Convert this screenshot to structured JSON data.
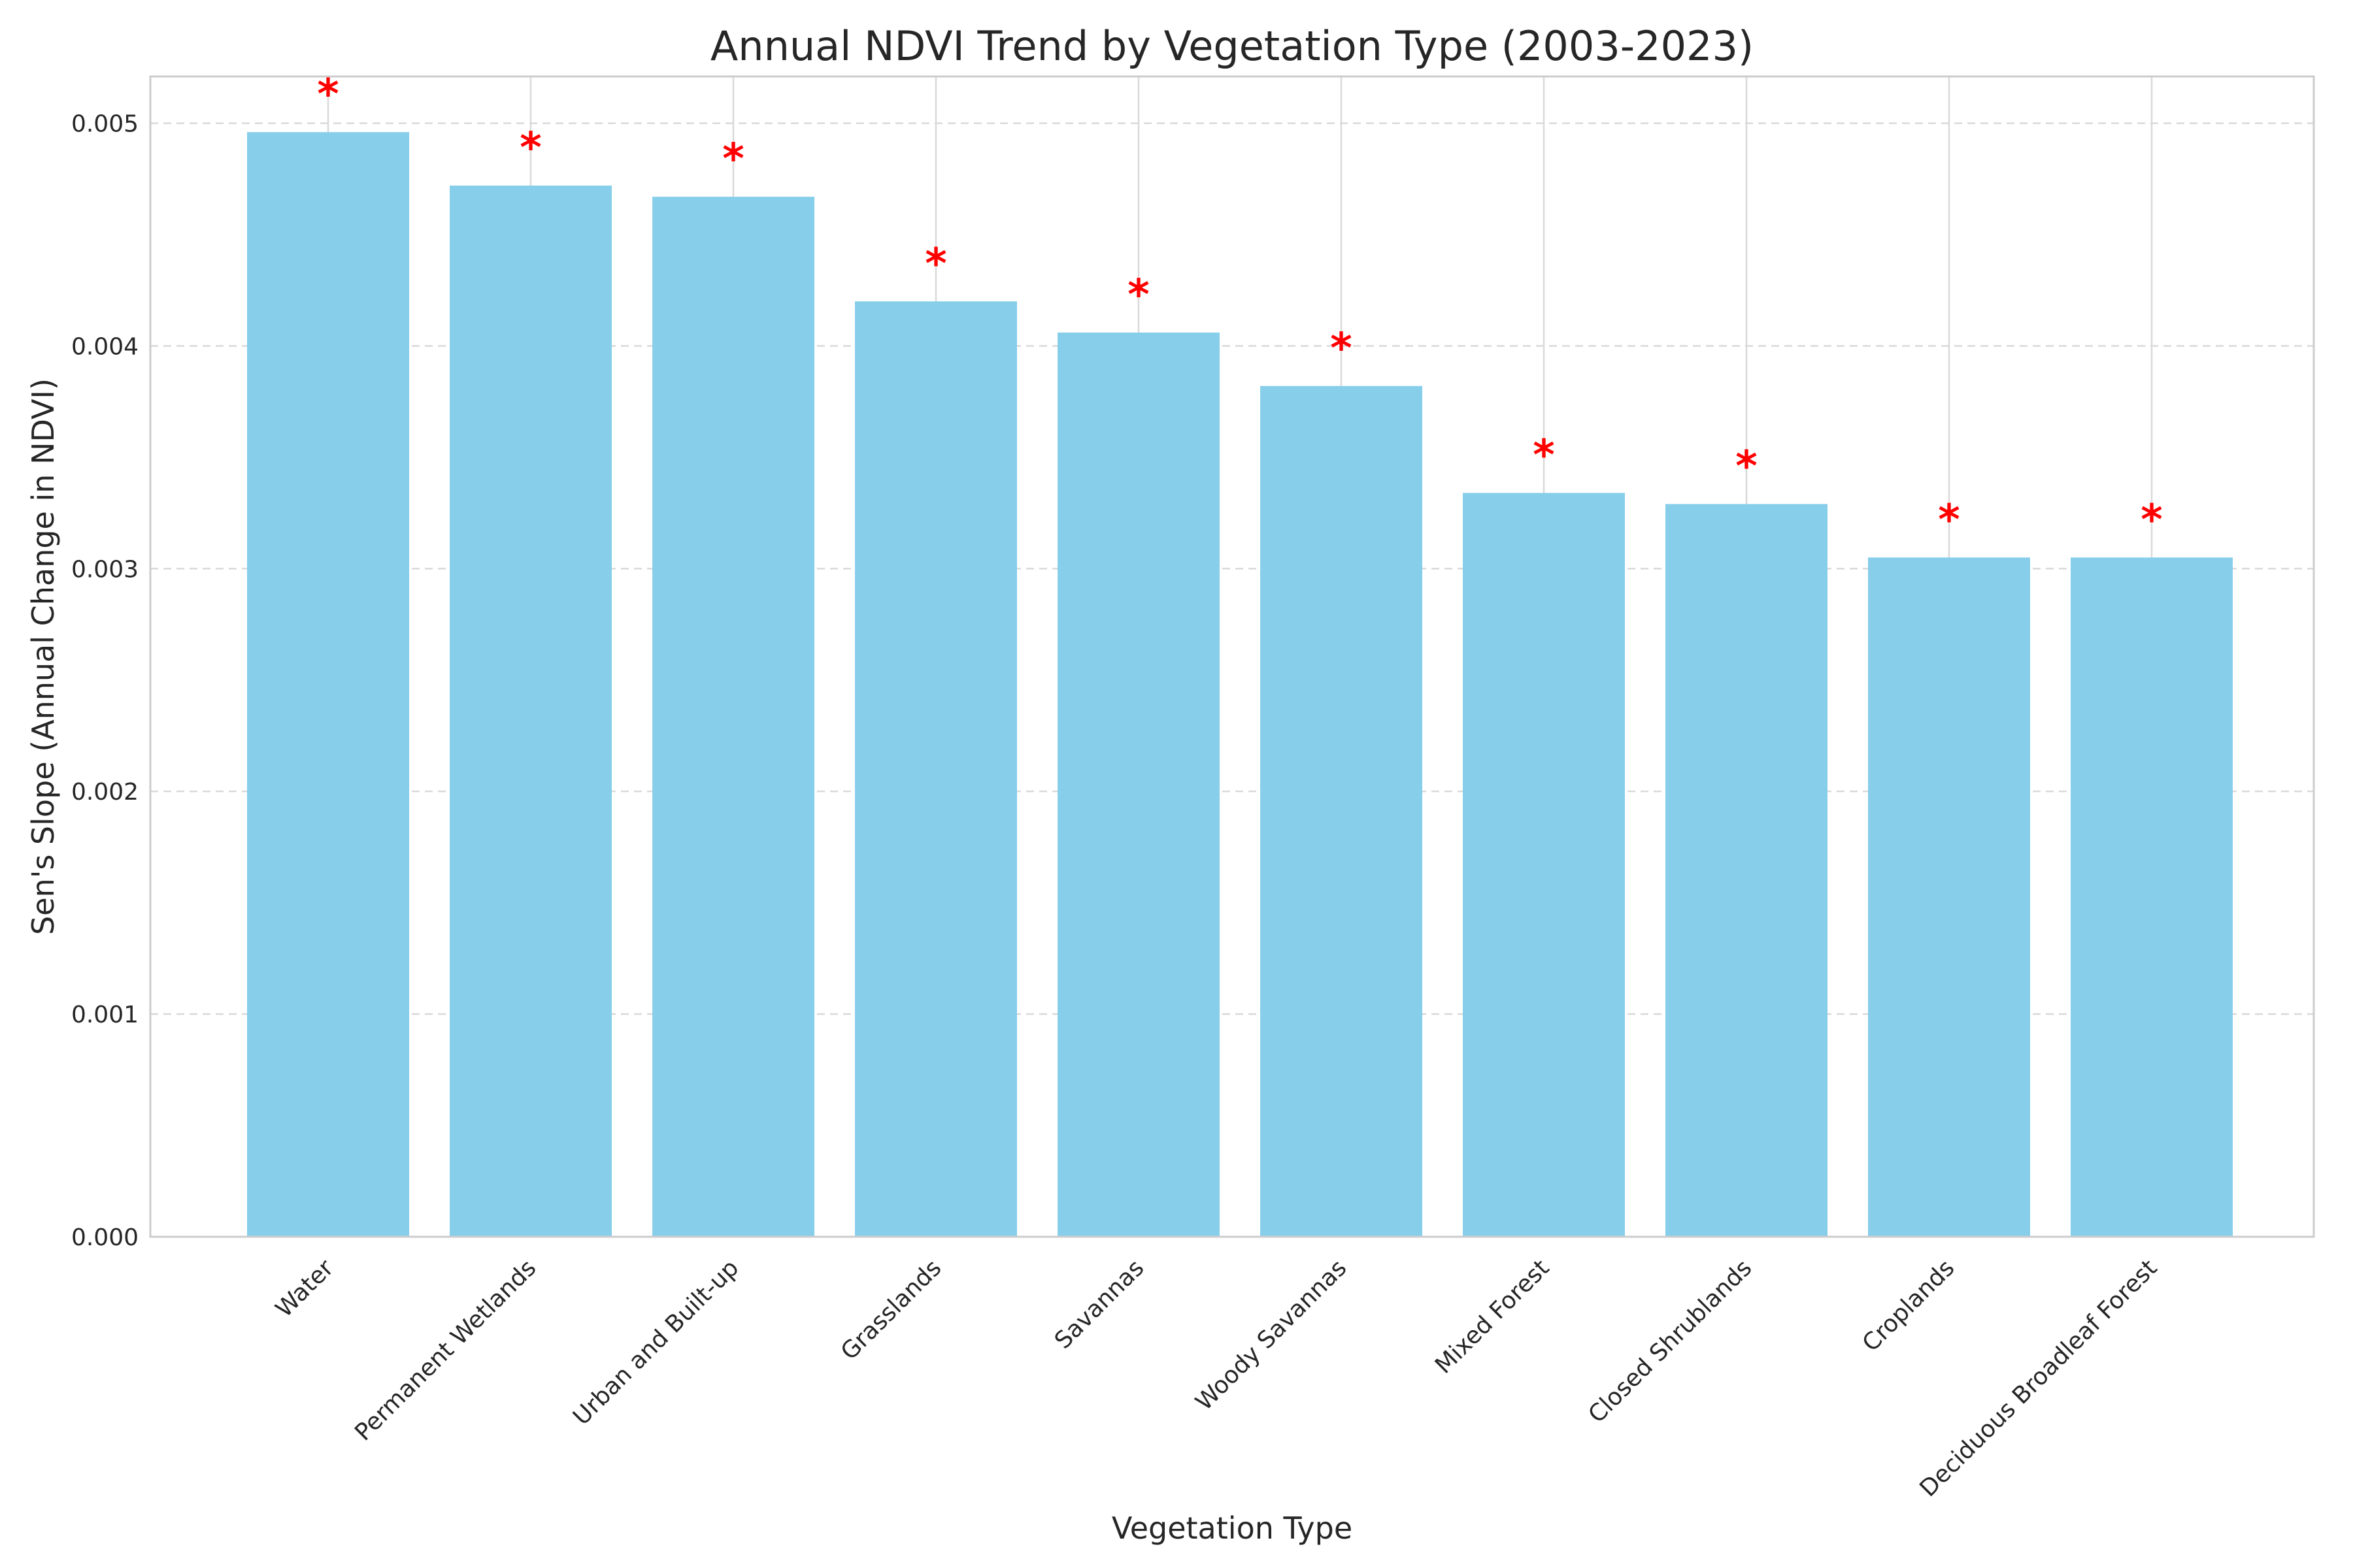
{
  "chart_data": {
    "type": "bar",
    "title": "Annual NDVI Trend by Vegetation Type (2003-2023)",
    "xlabel": "Vegetation Type",
    "ylabel": "Sen's Slope (Annual Change in NDVI)",
    "categories": [
      "Water",
      "Permanent Wetlands",
      "Urban and Built-up",
      "Grasslands",
      "Savannas",
      "Woody Savannas",
      "Mixed Forest",
      "Closed Shrublands",
      "Croplands",
      "Deciduous Broadleaf Forest"
    ],
    "values": [
      0.00496,
      0.00472,
      0.00467,
      0.0042,
      0.00406,
      0.00382,
      0.00334,
      0.00329,
      0.00305,
      0.00305
    ],
    "significant": [
      true,
      true,
      true,
      true,
      true,
      true,
      true,
      true,
      true,
      true
    ],
    "significance_marker": "*",
    "ylim": [
      0,
      0.00521
    ],
    "yticks": [
      "0.000",
      "0.001",
      "0.002",
      "0.003",
      "0.004",
      "0.005"
    ],
    "ytick_values": [
      0,
      0.001,
      0.002,
      0.003,
      0.004,
      0.005
    ],
    "grid": true,
    "colors": {
      "bar": "#87ceeb",
      "marker": "#ff0000",
      "grid": "#d9d9d9",
      "axes": "#cccccc",
      "text": "#262626"
    }
  }
}
